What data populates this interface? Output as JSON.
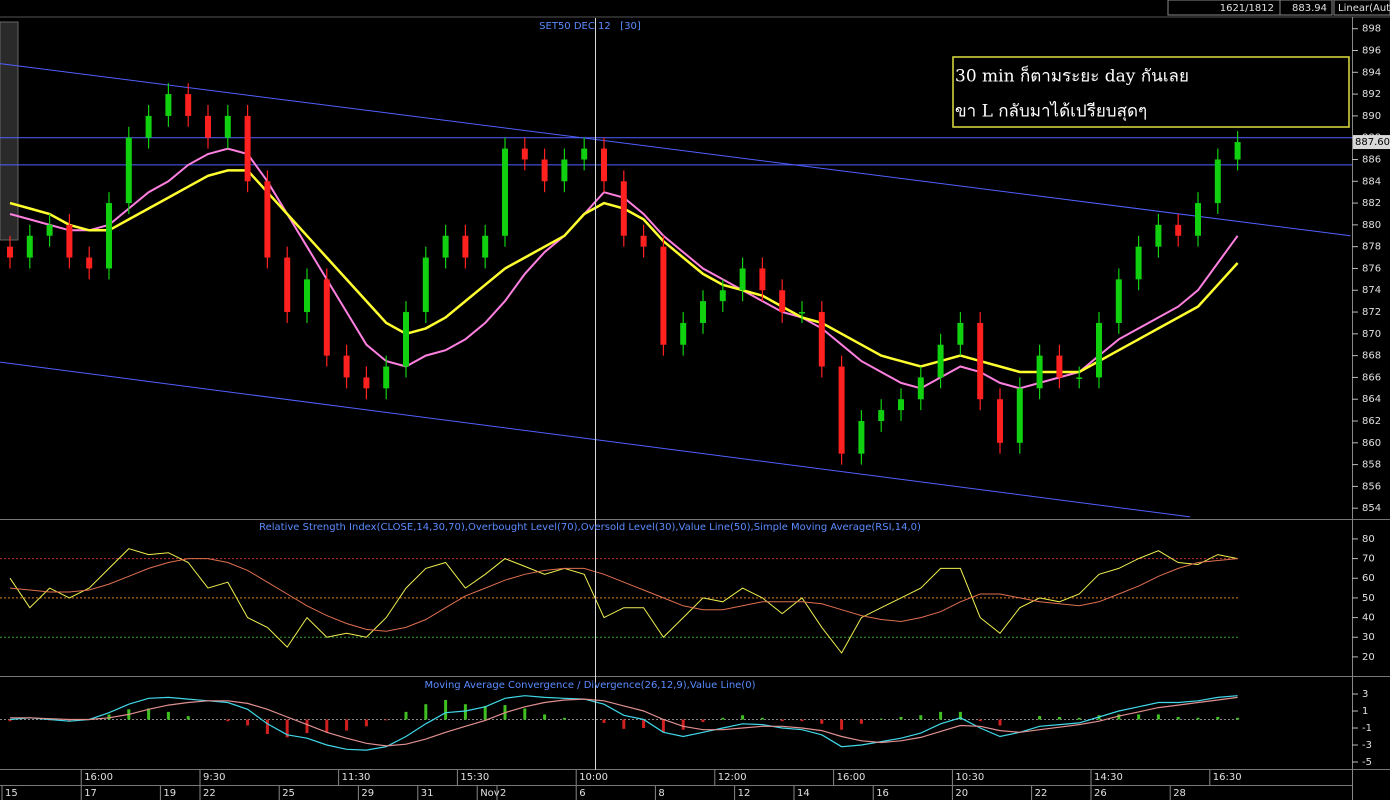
{
  "top_bar": {
    "bars": "1621/1812",
    "price": "883.94",
    "scale": "Linear(Aut"
  },
  "chart_data": [
    {
      "type": "candlestick",
      "title": "SET50 DEC 12   [30]",
      "annotation": [
        "30 min ก็ตามระยะ day กันเลย",
        "ขา L กลับมาได้เปรียบสุดๆ"
      ],
      "open": [
        878,
        877,
        879,
        880,
        877,
        876,
        882,
        888,
        890,
        892,
        890,
        888,
        890,
        884,
        877,
        872,
        875,
        868,
        866,
        865,
        867,
        872,
        877,
        879,
        877,
        879,
        887,
        886,
        884,
        886,
        887,
        884,
        879,
        878,
        869,
        871,
        873,
        874,
        876,
        874,
        872,
        872,
        867,
        859,
        862,
        863,
        864,
        866,
        869,
        871,
        864,
        860,
        865,
        868,
        866,
        866,
        871,
        875,
        878,
        880,
        879,
        882,
        886
      ],
      "high": [
        879,
        880,
        881,
        881,
        878,
        883,
        889,
        891,
        893,
        893,
        891,
        891,
        891,
        885,
        878,
        876,
        876,
        869,
        867,
        868,
        873,
        878,
        880,
        880,
        880,
        888,
        888,
        887,
        887,
        888,
        888,
        885,
        880,
        879,
        872,
        874,
        875,
        877,
        877,
        875,
        873,
        873,
        868,
        863,
        864,
        865,
        867,
        870,
        872,
        872,
        865,
        866,
        869,
        869,
        867,
        872,
        876,
        879,
        881,
        881,
        883,
        887,
        888.6
      ],
      "low": [
        876,
        876,
        878,
        876,
        875,
        875,
        881,
        887,
        889,
        889,
        887,
        887,
        883,
        876,
        871,
        871,
        867,
        865,
        864,
        864,
        866,
        871,
        876,
        876,
        876,
        878,
        885,
        883,
        883,
        885,
        883,
        878,
        877,
        868,
        868,
        870,
        872,
        873,
        873,
        871,
        871,
        866,
        858,
        858,
        861,
        862,
        863,
        865,
        868,
        863,
        859,
        859,
        864,
        865,
        865,
        865,
        870,
        874,
        877,
        878,
        878,
        881,
        885
      ],
      "close": [
        877,
        879,
        880,
        877,
        876,
        882,
        888,
        890,
        892,
        890,
        888,
        890,
        884,
        877,
        872,
        875,
        868,
        866,
        865,
        867,
        872,
        877,
        879,
        877,
        879,
        887,
        886,
        884,
        886,
        887,
        884,
        879,
        878,
        869,
        871,
        873,
        874,
        876,
        874,
        872,
        872,
        867,
        859,
        862,
        863,
        864,
        866,
        869,
        871,
        864,
        860,
        865,
        868,
        866,
        866,
        871,
        875,
        878,
        880,
        879,
        882,
        886,
        887.6
      ],
      "up_color": "#10d010",
      "down_color": "#ff2020",
      "ma": [
        {
          "color": "#ff80e0",
          "values": [
            881,
            880.5,
            880,
            879.5,
            879.5,
            880,
            881.5,
            883,
            884,
            885.5,
            886.5,
            887,
            886.5,
            884,
            881,
            878,
            875,
            872,
            869,
            867.5,
            867,
            868,
            868.5,
            869.5,
            871,
            873,
            875.5,
            877.5,
            879,
            881,
            883,
            882.5,
            881,
            879,
            877.5,
            876,
            875,
            874,
            873,
            872,
            871.5,
            870.5,
            869,
            867.5,
            866.5,
            865.5,
            865,
            866,
            867,
            866.5,
            865.5,
            865,
            865.5,
            866,
            866.5,
            868,
            869.5,
            870.5,
            871.5,
            872.5,
            874,
            876.5,
            879
          ]
        },
        {
          "color": "#ffff30",
          "values": [
            882,
            881.5,
            881,
            880,
            879.5,
            879.5,
            880.5,
            881.5,
            882.5,
            883.5,
            884.5,
            885,
            885,
            883,
            881,
            879,
            877,
            875,
            873,
            871,
            870,
            870.5,
            871.5,
            873,
            874.5,
            876,
            877,
            878,
            879,
            881,
            882,
            881.5,
            880.5,
            878.5,
            877,
            875.5,
            874.5,
            874,
            873.5,
            872.5,
            871.5,
            871,
            870,
            869,
            868,
            867.5,
            867,
            867.5,
            868,
            867.5,
            867,
            866.5,
            866.5,
            866.5,
            866.5,
            867.5,
            868.5,
            869.5,
            870.5,
            871.5,
            872.5,
            874.5,
            876.5
          ]
        }
      ],
      "trendlines": [
        {
          "x": [
            -0.5,
            67.7
          ],
          "y": [
            894.8,
            879
          ]
        },
        {
          "x": [
            -0.5,
            59.6
          ],
          "y": [
            867.4,
            853.2
          ]
        }
      ],
      "trendline_color": "#5060ff",
      "hlines": [
        888,
        885.5
      ],
      "last_price": {
        "value": 887.6,
        "label": "887.60"
      },
      "ylim": [
        853.1,
        898.8
      ],
      "yticks": [
        854,
        856,
        858,
        860,
        862,
        864,
        866,
        868,
        870,
        872,
        874,
        876,
        878,
        880,
        882,
        884,
        886,
        888,
        890,
        892,
        894,
        896,
        898
      ]
    },
    {
      "type": "line",
      "title": "Relative Strength Index(CLOSE,14,30,70),Overbought Level(70),Oversold Level(30),Value Line(50),Simple Moving Average(RSI,14,0)",
      "series": [
        {
          "color": "#f0f050",
          "values": [
            60,
            45,
            55,
            50,
            55,
            65,
            75,
            72,
            73,
            68,
            55,
            58,
            40,
            35,
            25,
            40,
            30,
            32,
            30,
            40,
            55,
            65,
            68,
            55,
            62,
            70,
            66,
            62,
            65,
            62,
            40,
            45,
            45,
            30,
            40,
            50,
            48,
            55,
            50,
            42,
            50,
            35,
            22,
            40,
            45,
            50,
            55,
            65,
            65,
            40,
            32,
            45,
            50,
            48,
            52,
            62,
            65,
            70,
            74,
            68,
            67,
            72,
            70
          ]
        },
        {
          "color": "#e07050",
          "values": [
            55,
            54,
            53,
            53,
            54,
            57,
            61,
            65,
            68,
            70,
            70,
            68,
            64,
            58,
            52,
            46,
            41,
            37,
            34,
            33,
            35,
            39,
            45,
            51,
            55,
            59,
            62,
            64,
            65,
            65,
            62,
            58,
            54,
            50,
            46,
            44,
            44,
            46,
            48,
            48,
            48,
            47,
            44,
            41,
            39,
            38,
            40,
            43,
            48,
            52,
            52,
            50,
            48,
            47,
            46,
            48,
            52,
            56,
            61,
            65,
            68,
            69,
            70
          ]
        }
      ],
      "levels": [
        70,
        30,
        50
      ],
      "level_colors": [
        "#c03030",
        "#30a030",
        "#e08020"
      ],
      "ylim": [
        10.8,
        88.6
      ],
      "yticks": [
        20,
        30,
        40,
        50,
        60,
        70,
        80
      ]
    },
    {
      "type": "bar",
      "title": "Moving Average Convergence / Divergence(26,12,9),Value Line(0)",
      "values": [
        -0.2,
        0,
        -0.1,
        -0.2,
        0,
        0.6,
        1.2,
        1.3,
        0.9,
        0.4,
        0,
        -0.2,
        -0.7,
        -1.7,
        -2.1,
        -1.6,
        -1.5,
        -1.3,
        -0.8,
        -0.1,
        0.9,
        1.8,
        2.3,
        1.8,
        1.6,
        1.7,
        1.3,
        0.6,
        0.2,
        0,
        -0.4,
        -1.1,
        -1,
        -1.5,
        -1.2,
        -0.3,
        0.2,
        0.5,
        0.2,
        -0.2,
        -0.2,
        -0.5,
        -1.2,
        -0.5,
        0.1,
        0.3,
        0.5,
        0.9,
        0.9,
        -0.2,
        -0.7,
        0,
        0.4,
        0.3,
        0.2,
        0.5,
        0.6,
        0.6,
        0.6,
        0.3,
        0.2,
        0.3,
        0.2
      ],
      "up_color": "#40c020",
      "down_color": "#d02020",
      "series": [
        {
          "color": "#40d8e8",
          "values": [
            0,
            0.2,
            0,
            -0.2,
            0,
            0.8,
            1.8,
            2.5,
            2.6,
            2.4,
            2.2,
            2.0,
            1.2,
            -0.5,
            -1.8,
            -2.2,
            -3,
            -3.5,
            -3.6,
            -3.2,
            -2,
            -0.5,
            0.8,
            1,
            1.5,
            2.5,
            2.8,
            2.6,
            2.5,
            2.4,
            1.8,
            0.5,
            0,
            -1.5,
            -2,
            -1.5,
            -1,
            -0.5,
            -0.6,
            -1,
            -1.2,
            -1.8,
            -3.2,
            -3,
            -2.6,
            -2.2,
            -1.6,
            -0.5,
            0.2,
            -1,
            -2,
            -1.5,
            -0.8,
            -0.6,
            -0.4,
            0.3,
            1,
            1.5,
            2,
            2,
            2.2,
            2.6,
            2.8
          ]
        },
        {
          "color": "#e09090",
          "values": [
            0.2,
            0.2,
            0.1,
            0,
            0,
            0.2,
            0.6,
            1.2,
            1.7,
            2,
            2.2,
            2.2,
            1.9,
            1.2,
            0.3,
            -0.6,
            -1.5,
            -2.2,
            -2.8,
            -3.1,
            -2.9,
            -2.3,
            -1.5,
            -0.8,
            -0.1,
            0.8,
            1.5,
            2,
            2.3,
            2.4,
            2.2,
            1.6,
            1,
            0,
            -0.8,
            -1.2,
            -1.2,
            -1,
            -0.8,
            -0.8,
            -1,
            -1.3,
            -2,
            -2.5,
            -2.7,
            -2.5,
            -2.1,
            -1.4,
            -0.7,
            -0.8,
            -1.3,
            -1.5,
            -1.2,
            -0.9,
            -0.6,
            -0.2,
            0.4,
            0.9,
            1.4,
            1.7,
            2,
            2.3,
            2.6
          ]
        }
      ],
      "value_line": 0,
      "ylim": [
        -5.94,
        4.65
      ],
      "yticks": [
        3,
        1,
        -1,
        -3,
        -5
      ]
    }
  ],
  "x_axis": {
    "time_labels": [
      null,
      null,
      null,
      null,
      "16:00",
      null,
      null,
      null,
      null,
      null,
      "9:30",
      null,
      null,
      null,
      null,
      null,
      null,
      "11:30",
      null,
      null,
      null,
      null,
      null,
      "15:30",
      null,
      null,
      null,
      null,
      null,
      "10:00",
      null,
      null,
      null,
      null,
      null,
      null,
      "12:00",
      null,
      null,
      null,
      null,
      null,
      "16:00",
      null,
      null,
      null,
      null,
      null,
      "10:30",
      null,
      null,
      null,
      null,
      null,
      null,
      "14:30",
      null,
      null,
      null,
      null,
      null,
      "16:30",
      null
    ],
    "date_labels": [
      "15",
      null,
      null,
      null,
      "17",
      null,
      null,
      null,
      "19",
      null,
      "22",
      null,
      null,
      null,
      "25",
      null,
      null,
      null,
      "29",
      null,
      null,
      "31",
      null,
      null,
      "Nov",
      "2",
      null,
      null,
      null,
      "6",
      null,
      null,
      null,
      "8",
      null,
      null,
      null,
      "12",
      null,
      null,
      "14",
      null,
      null,
      null,
      "16",
      null,
      null,
      null,
      "20",
      null,
      null,
      null,
      "22",
      null,
      null,
      "26",
      null,
      null,
      null,
      "28",
      null,
      null,
      null
    ]
  }
}
